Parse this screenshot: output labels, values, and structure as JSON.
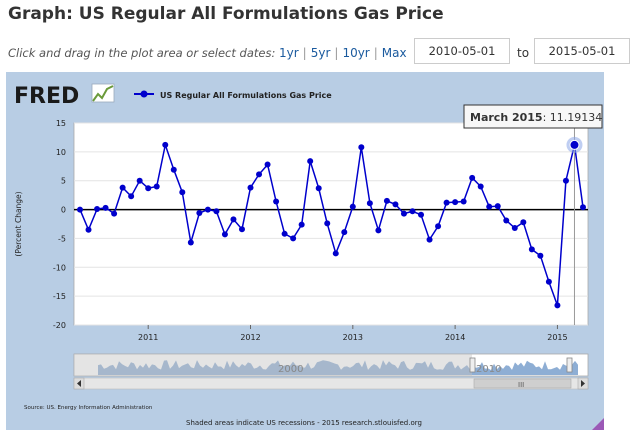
{
  "page": {
    "title": "Graph: US Regular All Formulations Gas Price",
    "instructions": "Click and drag in the plot area or select dates:",
    "range_links": [
      "1yr",
      "5yr",
      "10yr",
      "Max"
    ],
    "start_date": "2010-05-01",
    "end_date": "2015-05-01",
    "to_label": "to"
  },
  "chart_frame": {
    "logo": "FRED",
    "source": "Source: US. Energy Information Administration",
    "footer": "Shaded areas indicate US recessions - 2015 research.stlouisfed.org",
    "tooltip_label": "March 2015",
    "tooltip_value": "11.19134",
    "navigator_labels": [
      "2000",
      "2010"
    ],
    "scroll_grip": "III",
    "colors": {
      "frame_bg": "#b8cde4",
      "series": "#0000cc",
      "navigator_fill": "#7aa0cc"
    }
  },
  "chart_data": {
    "type": "line",
    "title": "",
    "legend_label": "US Regular All Formulations Gas Price",
    "xlabel": "",
    "ylabel": "(Percent Change)",
    "ylim": [
      -20,
      15
    ],
    "yticks": [
      15,
      10,
      5,
      0,
      -5,
      -10,
      -15,
      -20
    ],
    "xtick_labels": [
      "2011",
      "2012",
      "2013",
      "2014",
      "2015"
    ],
    "x_start": "2010-05",
    "series": [
      {
        "name": "US Regular All Formulations Gas Price",
        "values": [
          0.0,
          -3.5,
          0.1,
          0.3,
          -0.7,
          3.8,
          2.3,
          5.0,
          3.7,
          4.0,
          11.2,
          6.9,
          3.0,
          -5.7,
          -0.6,
          0.0,
          -0.3,
          -4.3,
          -1.7,
          -3.4,
          3.8,
          6.1,
          7.8,
          1.4,
          -4.2,
          -5.0,
          -2.6,
          8.4,
          3.7,
          -2.4,
          -7.6,
          -3.9,
          0.5,
          10.8,
          1.1,
          -3.6,
          1.5,
          0.9,
          -0.7,
          -0.3,
          -0.9,
          -5.2,
          -2.9,
          1.2,
          1.3,
          1.4,
          5.5,
          4.0,
          0.5,
          0.6,
          -1.9,
          -3.2,
          -2.2,
          -6.9,
          -8.0,
          -12.5,
          -16.6,
          5.0,
          11.2,
          0.4
        ]
      }
    ]
  }
}
